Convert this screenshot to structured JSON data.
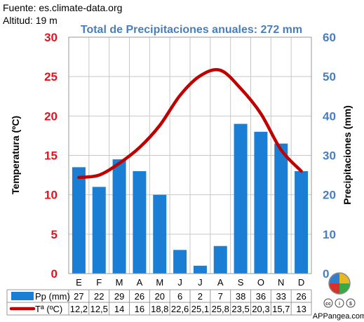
{
  "header": {
    "source": "Fuente: es.climate-data.org",
    "altitude": "Altitud: 19 m"
  },
  "footer": {
    "brand": "APPangea.com",
    "license": "cc by nc"
  },
  "colors": {
    "bars": "#1a7fd4",
    "line": "#c00000",
    "left_axis": "#e0141e",
    "right_axis": "#4a7ebb",
    "title": "#4a7ebb"
  },
  "chart_data": {
    "type": "bar",
    "title": "Total de Precipitaciones anuales: 272 mm",
    "categories": [
      "E",
      "F",
      "M",
      "A",
      "M",
      "J",
      "J",
      "A",
      "S",
      "O",
      "N",
      "D"
    ],
    "y_left": {
      "label": "Temperatura (ºC)",
      "range": [
        0,
        30
      ],
      "ticks": [
        0,
        5,
        10,
        15,
        20,
        25,
        30
      ]
    },
    "y_right": {
      "label": "Precipitaciones (mm)",
      "range": [
        0,
        60
      ],
      "ticks": [
        0,
        10,
        20,
        30,
        40,
        50,
        60
      ]
    },
    "grid": true,
    "series": [
      {
        "name": "Pp (mm)",
        "kind": "bar",
        "axis": "right",
        "values": [
          27,
          22,
          29,
          26,
          20,
          6,
          2,
          7,
          38,
          36,
          33,
          26
        ]
      },
      {
        "name": "Tª (ºC)",
        "kind": "line",
        "axis": "left",
        "values": [
          12.2,
          12.5,
          14,
          16,
          18.8,
          22.6,
          25.1,
          25.8,
          23.5,
          20.3,
          15.7,
          13
        ]
      }
    ],
    "table": {
      "pp_row": [
        "27",
        "22",
        "29",
        "26",
        "20",
        "6",
        "2",
        "7",
        "38",
        "36",
        "33",
        "26"
      ],
      "t_row": [
        "12,2",
        "12,5",
        "14",
        "16",
        "18,8",
        "22,6",
        "25,1",
        "25,8",
        "23,5",
        "20,3",
        "15,7",
        "13"
      ]
    }
  }
}
